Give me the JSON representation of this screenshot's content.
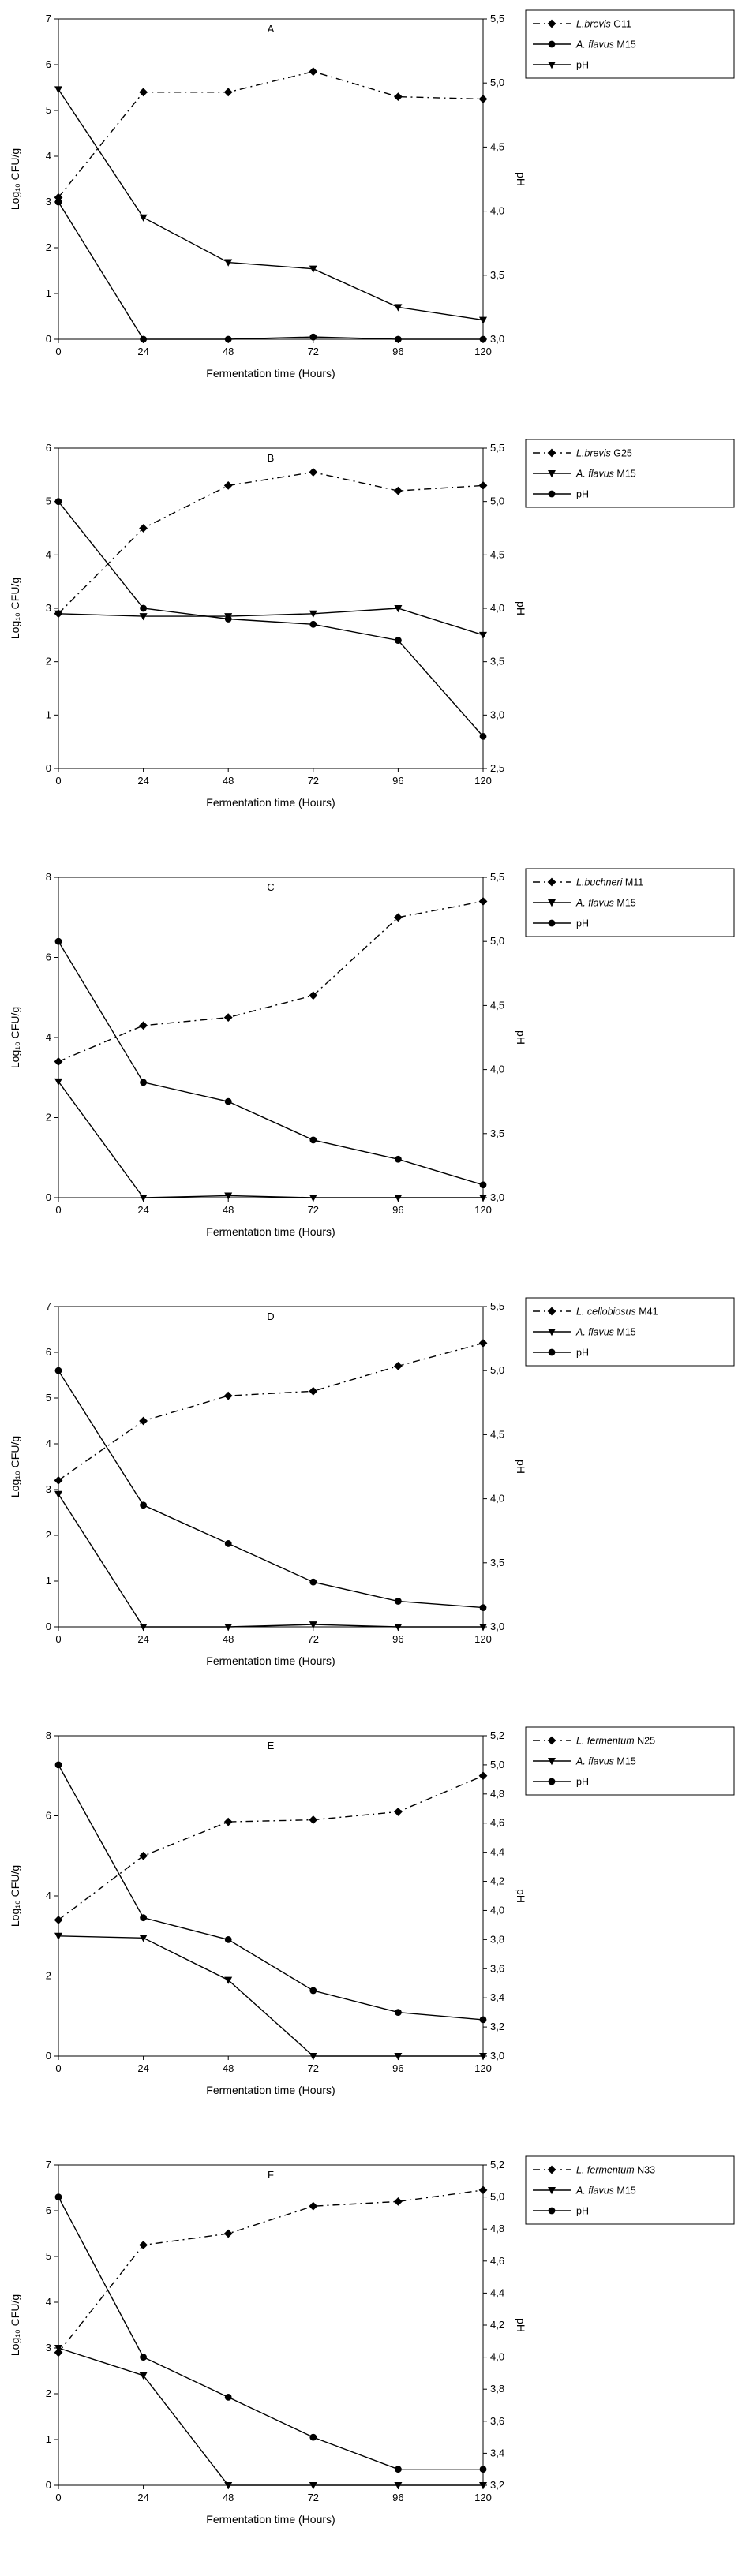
{
  "figure": {
    "xlabel": "Fermentation time (Hours)",
    "left_axis_label": "Log₁₀ CFU/g",
    "right_axis_label": "pH",
    "line_color": "#000000",
    "background_color": "#ffffff",
    "legend_position": "top-right-outside"
  },
  "chart_data": [
    {
      "type": "line",
      "panel": "A",
      "xlabel": "Fermentation time (Hours)",
      "x": [
        0,
        24,
        48,
        72,
        96,
        120
      ],
      "left_axis": {
        "label": "Log₁₀ CFU/g",
        "min": 0,
        "max": 7,
        "tick_values": [
          0,
          1,
          2,
          3,
          4,
          5,
          6,
          7
        ],
        "tick_labels": [
          "0",
          "1",
          "2",
          "3",
          "4",
          "5",
          "6",
          "7"
        ]
      },
      "right_axis": {
        "label": "pH",
        "min": 3.0,
        "max": 5.5,
        "tick_values": [
          3.0,
          3.5,
          4.0,
          4.5,
          5.0,
          5.5
        ],
        "tick_labels": [
          "3,0",
          "3,5",
          "4,0",
          "4,5",
          "5,0",
          "5,5"
        ]
      },
      "series": [
        {
          "label_em": "L.brevis",
          "label_rest": " G11",
          "axis": "left",
          "marker": "diamond",
          "line": "dashdot",
          "values": [
            3.1,
            5.4,
            5.4,
            5.85,
            5.3,
            5.25
          ]
        },
        {
          "label_em": "A. flavus",
          "label_rest": " M15",
          "axis": "left",
          "marker": "circle",
          "line": "solid",
          "values": [
            3.0,
            0,
            0,
            0.05,
            0,
            0
          ]
        },
        {
          "label_em": "",
          "label_rest": "pH",
          "axis": "right",
          "marker": "triangle",
          "line": "solid",
          "values": [
            4.95,
            3.95,
            3.6,
            3.55,
            3.25,
            3.15
          ]
        }
      ]
    },
    {
      "type": "line",
      "panel": "B",
      "xlabel": "Fermentation time (Hours)",
      "x": [
        0,
        24,
        48,
        72,
        96,
        120
      ],
      "left_axis": {
        "label": "Log₁₀ CFU/g",
        "min": 0,
        "max": 6,
        "tick_values": [
          0,
          1,
          2,
          3,
          4,
          5,
          6
        ],
        "tick_labels": [
          "0",
          "1",
          "2",
          "3",
          "4",
          "5",
          "6"
        ]
      },
      "right_axis": {
        "label": "pH",
        "min": 2.5,
        "max": 5.5,
        "tick_values": [
          2.5,
          3.0,
          3.5,
          4.0,
          4.5,
          5.0,
          5.5
        ],
        "tick_labels": [
          "2,5",
          "3,0",
          "3,5",
          "4,0",
          "4,5",
          "5,0",
          "5,5"
        ]
      },
      "series": [
        {
          "label_em": "L.brevis",
          "label_rest": " G25",
          "axis": "left",
          "marker": "diamond",
          "line": "dashdot",
          "values": [
            2.9,
            4.5,
            5.3,
            5.55,
            5.2,
            5.3
          ]
        },
        {
          "label_em": "A. flavus",
          "label_rest": " M15",
          "axis": "left",
          "marker": "triangle",
          "line": "solid",
          "values": [
            2.9,
            2.85,
            2.85,
            2.9,
            3.0,
            2.5
          ]
        },
        {
          "label_em": "",
          "label_rest": "pH",
          "axis": "right",
          "marker": "circle",
          "line": "solid",
          "values": [
            5.0,
            4.0,
            3.9,
            3.85,
            3.7,
            2.8
          ]
        }
      ]
    },
    {
      "type": "line",
      "panel": "C",
      "xlabel": "Fermentation time (Hours)",
      "x": [
        0,
        24,
        48,
        72,
        96,
        120
      ],
      "left_axis": {
        "label": "Log₁₀ CFU/g",
        "min": 0,
        "max": 8,
        "tick_values": [
          0,
          2,
          4,
          6,
          8
        ],
        "tick_labels": [
          "0",
          "2",
          "4",
          "6",
          "8"
        ]
      },
      "right_axis": {
        "label": "pH",
        "min": 3.0,
        "max": 5.5,
        "tick_values": [
          3.0,
          3.5,
          4.0,
          4.5,
          5.0,
          5.5
        ],
        "tick_labels": [
          "3,0",
          "3,5",
          "4,0",
          "4,5",
          "5,0",
          "5,5"
        ]
      },
      "series": [
        {
          "label_em": "L.buchneri",
          "label_rest": " M11",
          "axis": "left",
          "marker": "diamond",
          "line": "dashdot",
          "values": [
            3.4,
            4.3,
            4.5,
            5.05,
            7.0,
            7.4
          ]
        },
        {
          "label_em": "A. flavus",
          "label_rest": " M15",
          "axis": "left",
          "marker": "triangle",
          "line": "solid",
          "values": [
            2.9,
            0,
            0.05,
            0,
            0,
            0
          ]
        },
        {
          "label_em": "",
          "label_rest": "pH",
          "axis": "right",
          "marker": "circle",
          "line": "solid",
          "values": [
            5.0,
            3.9,
            3.75,
            3.45,
            3.3,
            3.1
          ]
        }
      ]
    },
    {
      "type": "line",
      "panel": "D",
      "xlabel": "Fermentation time (Hours)",
      "x": [
        0,
        24,
        48,
        72,
        96,
        120
      ],
      "left_axis": {
        "label": "Log₁₀ CFU/g",
        "min": 0,
        "max": 7,
        "tick_values": [
          0,
          1,
          2,
          3,
          4,
          5,
          6,
          7
        ],
        "tick_labels": [
          "0",
          "1",
          "2",
          "3",
          "4",
          "5",
          "6",
          "7"
        ]
      },
      "right_axis": {
        "label": "pH",
        "min": 3.0,
        "max": 5.5,
        "tick_values": [
          3.0,
          3.5,
          4.0,
          4.5,
          5.0,
          5.5
        ],
        "tick_labels": [
          "3,0",
          "3,5",
          "4,0",
          "4,5",
          "5,0",
          "5,5"
        ]
      },
      "series": [
        {
          "label_em": "L. cellobiosus",
          "label_rest": " M41",
          "axis": "left",
          "marker": "diamond",
          "line": "dashdot",
          "values": [
            3.2,
            4.5,
            5.05,
            5.15,
            5.7,
            6.2
          ]
        },
        {
          "label_em": "A. flavus",
          "label_rest": " M15",
          "axis": "left",
          "marker": "triangle",
          "line": "solid",
          "values": [
            2.9,
            0,
            0,
            0.05,
            0,
            0
          ]
        },
        {
          "label_em": "",
          "label_rest": "pH",
          "axis": "right",
          "marker": "circle",
          "line": "solid",
          "values": [
            5.0,
            3.95,
            3.65,
            3.35,
            3.2,
            3.15
          ]
        }
      ]
    },
    {
      "type": "line",
      "panel": "E",
      "xlabel": "Fermentation time (Hours)",
      "x": [
        0,
        24,
        48,
        72,
        96,
        120
      ],
      "left_axis": {
        "label": "Log₁₀ CFU/g",
        "min": 0,
        "max": 8,
        "tick_values": [
          0,
          2,
          4,
          6,
          8
        ],
        "tick_labels": [
          "0",
          "2",
          "4",
          "6",
          "8"
        ]
      },
      "right_axis": {
        "label": "pH",
        "min": 3.0,
        "max": 5.2,
        "tick_values": [
          3.0,
          3.2,
          3.4,
          3.6,
          3.8,
          4.0,
          4.2,
          4.4,
          4.6,
          4.8,
          5.0,
          5.2
        ],
        "tick_labels": [
          "3,0",
          "3,2",
          "3,4",
          "3,6",
          "3,8",
          "4,0",
          "4,2",
          "4,4",
          "4,6",
          "4,8",
          "5,0",
          "5,2"
        ]
      },
      "series": [
        {
          "label_em": "L. fermentum",
          "label_rest": " N25",
          "axis": "left",
          "marker": "diamond",
          "line": "dashdot",
          "values": [
            3.4,
            5.0,
            5.85,
            5.9,
            6.1,
            7.0
          ]
        },
        {
          "label_em": "A. flavus",
          "label_rest": " M15",
          "axis": "left",
          "marker": "triangle",
          "line": "solid",
          "values": [
            3.0,
            2.95,
            1.9,
            0,
            0,
            0
          ]
        },
        {
          "label_em": "",
          "label_rest": "pH",
          "axis": "right",
          "marker": "circle",
          "line": "solid",
          "values": [
            5.0,
            3.95,
            3.8,
            3.45,
            3.3,
            3.25
          ]
        }
      ]
    },
    {
      "type": "line",
      "panel": "F",
      "xlabel": "Fermentation time (Hours)",
      "x": [
        0,
        24,
        48,
        72,
        96,
        120
      ],
      "left_axis": {
        "label": "Log₁₀ CFU/g",
        "min": 0,
        "max": 7,
        "tick_values": [
          0,
          1,
          2,
          3,
          4,
          5,
          6,
          7
        ],
        "tick_labels": [
          "0",
          "1",
          "2",
          "3",
          "4",
          "5",
          "6",
          "7"
        ]
      },
      "right_axis": {
        "label": "pH",
        "min": 3.2,
        "max": 5.2,
        "tick_values": [
          3.2,
          3.4,
          3.6,
          3.8,
          4.0,
          4.2,
          4.4,
          4.6,
          4.8,
          5.0,
          5.2
        ],
        "tick_labels": [
          "3,2",
          "3,4",
          "3,6",
          "3,8",
          "4,0",
          "4,2",
          "4,4",
          "4,6",
          "4,8",
          "5,0",
          "5,2"
        ]
      },
      "series": [
        {
          "label_em": "L. fermentum",
          "label_rest": " N33",
          "axis": "left",
          "marker": "diamond",
          "line": "dashdot",
          "values": [
            2.9,
            5.25,
            5.5,
            6.1,
            6.2,
            6.45
          ]
        },
        {
          "label_em": "A. flavus",
          "label_rest": " M15",
          "axis": "left",
          "marker": "triangle",
          "line": "solid",
          "values": [
            3.0,
            2.4,
            0,
            0,
            0,
            0
          ]
        },
        {
          "label_em": "",
          "label_rest": "pH",
          "axis": "right",
          "marker": "circle",
          "line": "solid",
          "values": [
            5.0,
            4.0,
            3.75,
            3.5,
            3.3,
            3.3
          ]
        }
      ]
    }
  ]
}
